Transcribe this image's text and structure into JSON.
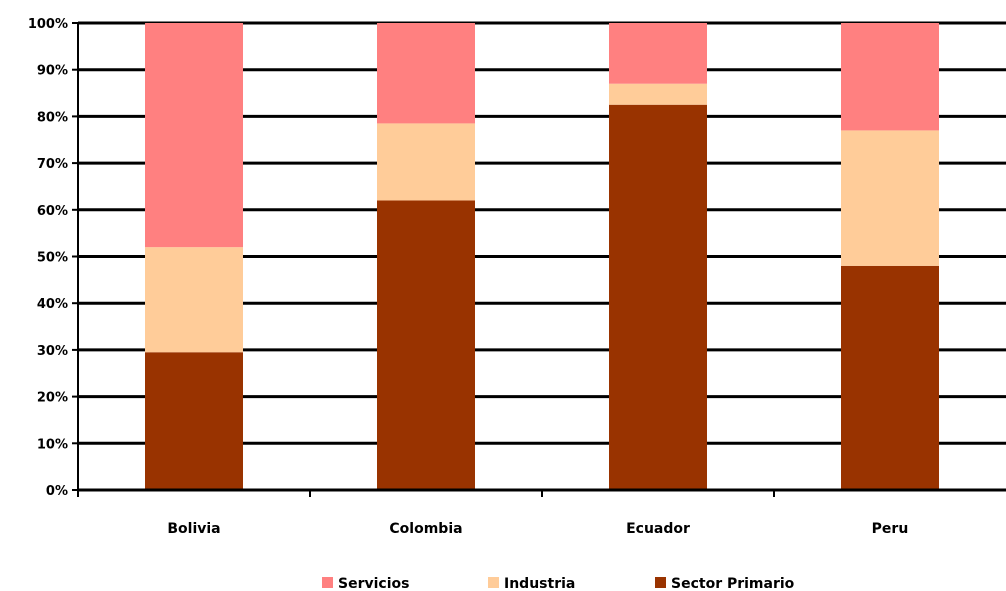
{
  "chart_data": {
    "type": "bar",
    "stacked": true,
    "percent": true,
    "title": "",
    "xlabel": "",
    "ylabel": "",
    "ylim": [
      0,
      100
    ],
    "yticks": [
      "0%",
      "10%",
      "20%",
      "30%",
      "40%",
      "50%",
      "60%",
      "70%",
      "80%",
      "90%",
      "100%"
    ],
    "grid": true,
    "legend_position": "bottom",
    "categories": [
      "Bolivia",
      "Colombia",
      "Ecuador",
      "Peru"
    ],
    "series": [
      {
        "name": "Sector Primario",
        "color": "#993300",
        "values": [
          29.5,
          62,
          82.5,
          48
        ]
      },
      {
        "name": "Industria",
        "color": "#FFCC99",
        "values": [
          22.5,
          16.5,
          4.5,
          29
        ]
      },
      {
        "name": "Servicios",
        "color": "#FF8080",
        "values": [
          48,
          21.5,
          13,
          23
        ]
      }
    ],
    "legend_order": [
      "Servicios",
      "Industria",
      "Sector Primario"
    ]
  }
}
